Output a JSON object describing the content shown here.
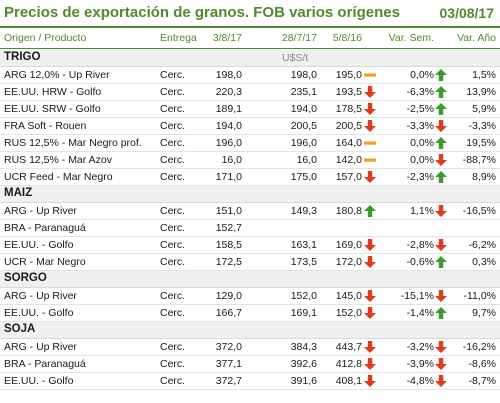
{
  "title": "Precios de exportación de granos. FOB varios orígenes",
  "date": "03/08/17",
  "header": {
    "origen": "Origen / Producto",
    "entrega": "Entrega",
    "d1": "3/8/17",
    "d2": "28/7/17",
    "d3": "5/8/16",
    "var_sem": "Var. Sem.",
    "var_ano": "Var. Año"
  },
  "colors": {
    "accent": "#4e8b2e",
    "up": "#3a9a2c",
    "down": "#e03b1e",
    "flat": "#f4a21b"
  },
  "sections": [
    {
      "label": "TRIGO",
      "unit": "U$S/t",
      "rows": [
        {
          "name": "ARG 12,0% - Up River",
          "entrega": "Cerc.",
          "v1": "198,0",
          "v2": "198,0",
          "v3": "195,0",
          "i1": "flat",
          "p1": "0,0%",
          "i2": "up",
          "p2": "1,5%"
        },
        {
          "name": "EE.UU. HRW - Golfo",
          "entrega": "Cerc.",
          "v1": "220,3",
          "v2": "235,1",
          "v3": "193,5",
          "i1": "down",
          "p1": "-6,3%",
          "i2": "up",
          "p2": "13,9%"
        },
        {
          "name": "EE.UU. SRW - Golfo",
          "entrega": "Cerc.",
          "v1": "189,1",
          "v2": "194,0",
          "v3": "178,5",
          "i1": "down",
          "p1": "-2,5%",
          "i2": "up",
          "p2": "5,9%"
        },
        {
          "name": "FRA Soft - Rouen",
          "entrega": "Cerc.",
          "v1": "194,0",
          "v2": "200,5",
          "v3": "200,5",
          "i1": "down",
          "p1": "-3,3%",
          "i2": "down",
          "p2": "-3,3%"
        },
        {
          "name": "RUS 12,5% - Mar Negro prof.",
          "entrega": "Cerc.",
          "v1": "196,0",
          "v2": "196,0",
          "v3": "164,0",
          "i1": "flat",
          "p1": "0,0%",
          "i2": "up",
          "p2": "19,5%"
        },
        {
          "name": "RUS 12,5% - Mar Azov",
          "entrega": "Cerc.",
          "v1": "16,0",
          "v2": "16,0",
          "v3": "142,0",
          "i1": "flat",
          "p1": "0,0%",
          "i2": "down",
          "p2": "-88,7%"
        },
        {
          "name": "UCR Feed - Mar Negro",
          "entrega": "Cerc.",
          "v1": "171,0",
          "v2": "175,0",
          "v3": "157,0",
          "i1": "down",
          "p1": "-2,3%",
          "i2": "up",
          "p2": "8,9%"
        }
      ]
    },
    {
      "label": "MAIZ",
      "unit": "",
      "rows": [
        {
          "name": "ARG - Up River",
          "entrega": "Cerc.",
          "v1": "151,0",
          "v2": "149,3",
          "v3": "180,8",
          "i1": "up",
          "p1": "1,1%",
          "i2": "down",
          "p2": "-16,5%"
        },
        {
          "name": "BRA - Paranaguá",
          "entrega": "Cerc.",
          "v1": "152,7",
          "v2": "",
          "v3": "",
          "i1": "",
          "p1": "",
          "i2": "",
          "p2": ""
        },
        {
          "name": "EE.UU. - Golfo",
          "entrega": "Cerc.",
          "v1": "158,5",
          "v2": "163,1",
          "v3": "169,0",
          "i1": "down",
          "p1": "-2,8%",
          "i2": "down",
          "p2": "-6,2%"
        },
        {
          "name": "UCR - Mar Negro",
          "entrega": "Cerc.",
          "v1": "172,5",
          "v2": "173,5",
          "v3": "172,0",
          "i1": "down",
          "p1": "-0,6%",
          "i2": "up",
          "p2": "0,3%"
        }
      ]
    },
    {
      "label": "SORGO",
      "unit": "",
      "rows": [
        {
          "name": "ARG - Up River",
          "entrega": "Cerc.",
          "v1": "129,0",
          "v2": "152,0",
          "v3": "145,0",
          "i1": "down",
          "p1": "-15,1%",
          "i2": "down",
          "p2": "-11,0%"
        },
        {
          "name": "EE.UU. - Golfo",
          "entrega": "Cerc.",
          "v1": "166,7",
          "v2": "169,1",
          "v3": "152,0",
          "i1": "down",
          "p1": "-1,4%",
          "i2": "up",
          "p2": "9,7%"
        }
      ]
    },
    {
      "label": "SOJA",
      "unit": "",
      "rows": [
        {
          "name": "ARG - Up River",
          "entrega": "Cerc.",
          "v1": "372,0",
          "v2": "384,3",
          "v3": "443,7",
          "i1": "down",
          "p1": "-3,2%",
          "i2": "down",
          "p2": "-16,2%"
        },
        {
          "name": "BRA - Paranaguá",
          "entrega": "Cerc.",
          "v1": "377,1",
          "v2": "392,6",
          "v3": "412,8",
          "i1": "down",
          "p1": "-3,9%",
          "i2": "down",
          "p2": "-8,6%"
        },
        {
          "name": "EE.UU. - Golfo",
          "entrega": "Cerc.",
          "v1": "372,7",
          "v2": "391,6",
          "v3": "408,1",
          "i1": "down",
          "p1": "-4,8%",
          "i2": "down",
          "p2": "-8,7%"
        }
      ]
    }
  ]
}
